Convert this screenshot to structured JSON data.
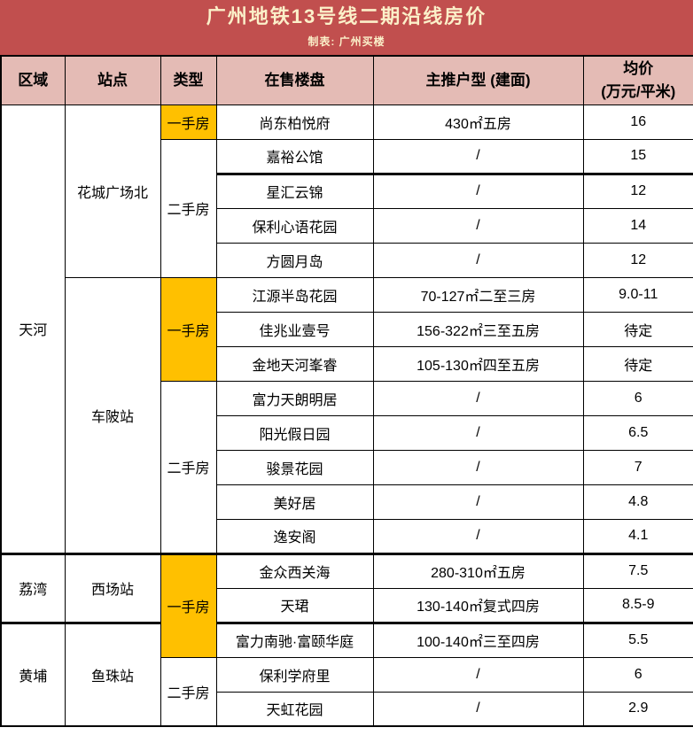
{
  "title": {
    "text": "广州地铁13号线二期沿线房价",
    "credit": "制表: 广州买楼"
  },
  "colors": {
    "title_bar": "#C14F4E",
    "title_text": "#FBF0C9",
    "header_bg": "#E4BBB5",
    "highlight_new_home": "#FFC000",
    "border": "#000000",
    "cell_bg": "#FFFFFF",
    "text": "#000000"
  },
  "table": {
    "headers": [
      "区域",
      "站点",
      "类型",
      "在售楼盘",
      "主推户型 (建面)",
      "均价\n(万元/平米)"
    ],
    "rows": [
      {
        "cells": [
          {
            "text": "天河",
            "span": 13,
            "kind": "region"
          },
          {
            "text": "花城广场北",
            "span": 5,
            "kind": "station"
          },
          {
            "text": "一手房",
            "span": 1,
            "kind": "new"
          },
          {
            "text": "尚东柏悦府",
            "kind": "name"
          },
          {
            "text": "430㎡五房",
            "kind": "unit"
          },
          {
            "text": "16",
            "kind": "price"
          }
        ]
      },
      {
        "cells": [
          {
            "text": "二手房",
            "span": 4,
            "kind": "old"
          },
          {
            "text": "嘉裕公馆",
            "kind": "name"
          },
          {
            "text": "/",
            "kind": "unit"
          },
          {
            "text": "15",
            "kind": "price"
          }
        ]
      },
      {
        "cells": [
          {
            "text": "星汇云锦",
            "kind": "name",
            "thick": true
          },
          {
            "text": "/",
            "kind": "unit",
            "thick": true
          },
          {
            "text": "12",
            "kind": "price",
            "thick": true
          }
        ]
      },
      {
        "cells": [
          {
            "text": "保利心语花园",
            "kind": "name"
          },
          {
            "text": "/",
            "kind": "unit"
          },
          {
            "text": "14",
            "kind": "price"
          }
        ]
      },
      {
        "cells": [
          {
            "text": "方圆月岛",
            "kind": "name"
          },
          {
            "text": "/",
            "kind": "unit"
          },
          {
            "text": "12",
            "kind": "price"
          }
        ]
      },
      {
        "cells": [
          {
            "text": "车陂站",
            "span": 8,
            "kind": "station"
          },
          {
            "text": "一手房",
            "span": 3,
            "kind": "new"
          },
          {
            "text": "江源半岛花园",
            "kind": "name"
          },
          {
            "text": "70-127㎡二至三房",
            "kind": "unit"
          },
          {
            "text": "9.0-11",
            "kind": "price"
          }
        ]
      },
      {
        "cells": [
          {
            "text": "佳兆业壹号",
            "kind": "name"
          },
          {
            "text": "156-322㎡三至五房",
            "kind": "unit"
          },
          {
            "text": "待定",
            "kind": "price"
          }
        ]
      },
      {
        "cells": [
          {
            "text": "金地天河峯睿",
            "kind": "name"
          },
          {
            "text": "105-130㎡四至五房",
            "kind": "unit"
          },
          {
            "text": "待定",
            "kind": "price"
          }
        ]
      },
      {
        "cells": [
          {
            "text": "二手房",
            "span": 5,
            "kind": "old"
          },
          {
            "text": "富力天朗明居",
            "kind": "name"
          },
          {
            "text": "/",
            "kind": "unit"
          },
          {
            "text": "6",
            "kind": "price"
          }
        ]
      },
      {
        "cells": [
          {
            "text": "阳光假日园",
            "kind": "name"
          },
          {
            "text": "/",
            "kind": "unit"
          },
          {
            "text": "6.5",
            "kind": "price"
          }
        ]
      },
      {
        "cells": [
          {
            "text": "骏景花园",
            "kind": "name"
          },
          {
            "text": "/",
            "kind": "unit"
          },
          {
            "text": "7",
            "kind": "price"
          }
        ]
      },
      {
        "cells": [
          {
            "text": "美好居",
            "kind": "name"
          },
          {
            "text": "/",
            "kind": "unit"
          },
          {
            "text": "4.8",
            "kind": "price"
          }
        ]
      },
      {
        "cells": [
          {
            "text": "逸安阁",
            "kind": "name"
          },
          {
            "text": "/",
            "kind": "unit"
          },
          {
            "text": "4.1",
            "kind": "price"
          }
        ]
      },
      {
        "cells": [
          {
            "text": "荔湾",
            "span": 2,
            "kind": "region",
            "thick": true
          },
          {
            "text": "西场站",
            "span": 2,
            "kind": "station",
            "thick": true
          },
          {
            "text": "一手房",
            "span": 3,
            "kind": "new",
            "thick": true
          },
          {
            "text": "金众西关海",
            "kind": "name",
            "thick": true
          },
          {
            "text": "280-310㎡五房",
            "kind": "unit",
            "thick": true
          },
          {
            "text": "7.5",
            "kind": "price",
            "thick": true
          }
        ]
      },
      {
        "cells": [
          {
            "text": "天珺",
            "kind": "name"
          },
          {
            "text": "130-140㎡复式四房",
            "kind": "unit"
          },
          {
            "text": "8.5-9",
            "kind": "price"
          }
        ]
      },
      {
        "cells": [
          {
            "text": "黄埔",
            "span": 3,
            "kind": "region",
            "thick": true
          },
          {
            "text": "鱼珠站",
            "span": 3,
            "kind": "station",
            "thick": true
          },
          {
            "text": "富力南驰·富颐华庭",
            "kind": "name",
            "thick": true
          },
          {
            "text": "100-140㎡三至四房",
            "kind": "unit",
            "thick": true
          },
          {
            "text": "5.5",
            "kind": "price",
            "thick": true
          }
        ]
      },
      {
        "cells": [
          {
            "text": "二手房",
            "span": 2,
            "kind": "old"
          },
          {
            "text": "保利学府里",
            "kind": "name"
          },
          {
            "text": "/",
            "kind": "unit"
          },
          {
            "text": "6",
            "kind": "price"
          }
        ]
      },
      {
        "cells": [
          {
            "text": "天虹花园",
            "kind": "name"
          },
          {
            "text": "/",
            "kind": "unit"
          },
          {
            "text": "2.9",
            "kind": "price"
          }
        ]
      }
    ]
  },
  "chart_data": {
    "type": "table",
    "title": "广州地铁13号线二期沿线房价",
    "subtitle": "制表: 广州买楼",
    "columns": [
      "区域",
      "站点",
      "类型",
      "在售楼盘",
      "主推户型 (建面)",
      "均价(万元/平米)"
    ],
    "rows": [
      [
        "天河",
        "花城广场北",
        "一手房",
        "尚东柏悦府",
        "430㎡五房",
        "16"
      ],
      [
        "天河",
        "花城广场北",
        "二手房",
        "嘉裕公馆",
        "/",
        "15"
      ],
      [
        "天河",
        "花城广场北",
        "二手房",
        "星汇云锦",
        "/",
        "12"
      ],
      [
        "天河",
        "花城广场北",
        "二手房",
        "保利心语花园",
        "/",
        "14"
      ],
      [
        "天河",
        "花城广场北",
        "二手房",
        "方圆月岛",
        "/",
        "12"
      ],
      [
        "天河",
        "车陂站",
        "一手房",
        "江源半岛花园",
        "70-127㎡二至三房",
        "9.0-11"
      ],
      [
        "天河",
        "车陂站",
        "一手房",
        "佳兆业壹号",
        "156-322㎡三至五房",
        "待定"
      ],
      [
        "天河",
        "车陂站",
        "一手房",
        "金地天河峯睿",
        "105-130㎡四至五房",
        "待定"
      ],
      [
        "天河",
        "车陂站",
        "二手房",
        "富力天朗明居",
        "/",
        "6"
      ],
      [
        "天河",
        "车陂站",
        "二手房",
        "阳光假日园",
        "/",
        "6.5"
      ],
      [
        "天河",
        "车陂站",
        "二手房",
        "骏景花园",
        "/",
        "7"
      ],
      [
        "天河",
        "车陂站",
        "二手房",
        "美好居",
        "/",
        "4.8"
      ],
      [
        "天河",
        "车陂站",
        "二手房",
        "逸安阁",
        "/",
        "4.1"
      ],
      [
        "荔湾",
        "西场站",
        "一手房",
        "金众西关海",
        "280-310㎡五房",
        "7.5"
      ],
      [
        "荔湾",
        "西场站",
        "一手房",
        "天珺",
        "130-140㎡复式四房",
        "8.5-9"
      ],
      [
        "黄埔",
        "鱼珠站",
        "一手房",
        "富力南驰·富颐华庭",
        "100-140㎡三至四房",
        "5.5"
      ],
      [
        "黄埔",
        "鱼珠站",
        "二手房",
        "保利学府里",
        "/",
        "6"
      ],
      [
        "黄埔",
        "鱼珠站",
        "二手房",
        "天虹花园",
        "/",
        "2.9"
      ]
    ]
  }
}
